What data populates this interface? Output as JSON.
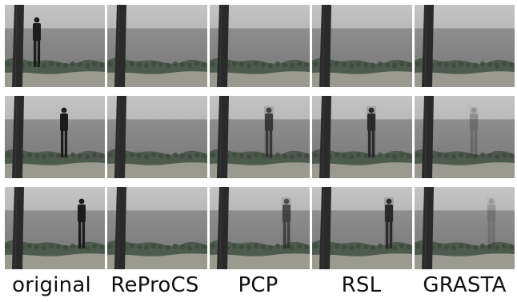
{
  "columns": [
    {
      "id": "original",
      "label": "original"
    },
    {
      "id": "reprocs",
      "label": "ReProCS"
    },
    {
      "id": "pcp",
      "label": "PCP"
    },
    {
      "id": "rsl",
      "label": "RSL"
    },
    {
      "id": "grasta",
      "label": "GRASTA"
    }
  ],
  "rows": [
    {
      "id": "frame-1",
      "person_position": "left"
    },
    {
      "id": "frame-2",
      "person_position": "center"
    },
    {
      "id": "frame-3",
      "person_position": "center-right"
    }
  ],
  "person_visibility": {
    "original": [
      1.0,
      1.0,
      1.0
    ],
    "reprocs": [
      0.0,
      0.0,
      0.0
    ],
    "pcp": [
      0.0,
      0.85,
      0.75
    ],
    "rsl": [
      0.0,
      1.0,
      1.0
    ],
    "grasta": [
      0.0,
      0.3,
      0.25
    ]
  },
  "colors": {
    "sky": "#b9b9b9",
    "sea": "#7d7d7d",
    "shore": "#4f5a4f",
    "sand": "#9a9a90",
    "tree": "#2a2a2a",
    "person": "#1c1c1c"
  }
}
